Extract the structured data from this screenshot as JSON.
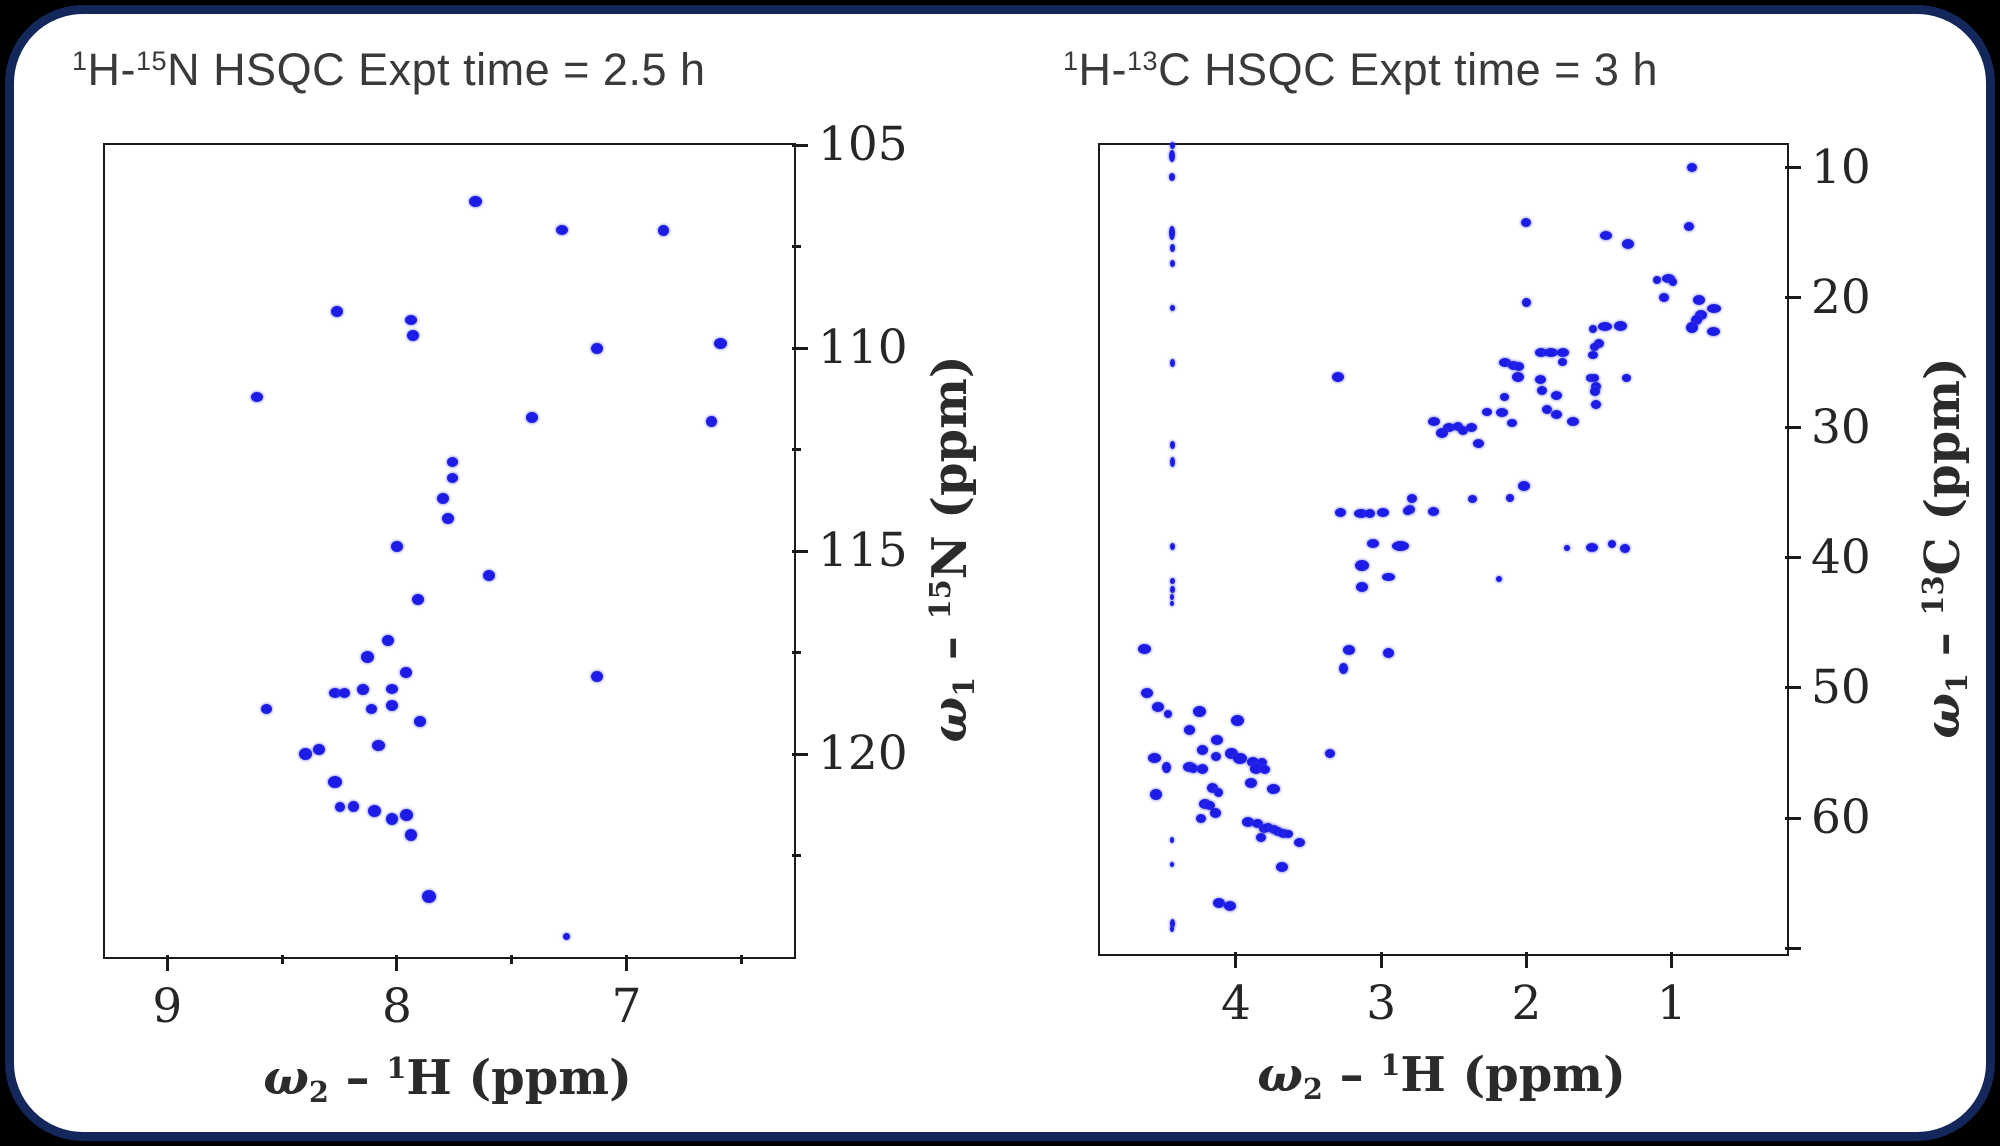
{
  "figure": {
    "background": "#000000",
    "card_border_color": "#14275a",
    "card_background": "#ffffff",
    "peak_color": "#1c1ce6",
    "axis_color": "#1a1a1a",
    "title_color": "#3a3a3a",
    "left_title_plain": "1H-15N HSQC Expt time = 2.5 h",
    "right_title_plain": "1H-13C HSQC Expt time = 3 h"
  },
  "chart_data": [
    {
      "type": "scatter",
      "id": "hsqc-1h15n",
      "title_plain": "1H-15N HSQC Expt time = 2.5 h",
      "title_segments": [
        [
          "sup",
          "1"
        ],
        [
          "t",
          "H-"
        ],
        [
          "sup",
          "15"
        ],
        [
          "t",
          "N HSQC Expt time = 2.5 h"
        ]
      ],
      "xlabel_plain": "w2 - 1H (ppm)",
      "xlabel_segments": [
        [
          "i",
          "ω"
        ],
        [
          "sub",
          "2"
        ],
        [
          "t",
          " – "
        ],
        [
          "sup",
          "1"
        ],
        [
          "t",
          "H (ppm)"
        ]
      ],
      "ylabel_plain": "w1 - 15N (ppm)",
      "ylabel_segments": [
        [
          "i",
          "ω"
        ],
        [
          "sub",
          "1"
        ],
        [
          "t",
          " – "
        ],
        [
          "sup",
          "15"
        ],
        [
          "t",
          "N (ppm)"
        ]
      ],
      "x_axis_reversed": true,
      "y_axis_reversed": true,
      "y_labels_side": "right",
      "grid": false,
      "x_range": [
        9.28,
        6.28
      ],
      "y_range": [
        104.95,
        124.95
      ],
      "x_ticks": [
        9,
        8,
        7
      ],
      "x_minor_ticks": [
        8.5,
        7.5,
        6.5
      ],
      "y_ticks": [
        105,
        110,
        115,
        120
      ],
      "y_minor_ticks": [
        107.5,
        112.5,
        117.5,
        122.5
      ],
      "points_note": "each point = [1H ppm, 15N ppm, width px, height px]",
      "points": [
        [
          7.66,
          106.4,
          13,
          11
        ],
        [
          7.28,
          107.1,
          12,
          10
        ],
        [
          6.84,
          107.1,
          11,
          11
        ],
        [
          8.26,
          109.1,
          12,
          11
        ],
        [
          7.94,
          109.3,
          12,
          10
        ],
        [
          7.93,
          109.7,
          12,
          11
        ],
        [
          7.13,
          110.0,
          12,
          11
        ],
        [
          6.59,
          109.9,
          13,
          11
        ],
        [
          8.61,
          111.2,
          12,
          10
        ],
        [
          7.41,
          111.7,
          12,
          11
        ],
        [
          6.63,
          111.8,
          11,
          11
        ],
        [
          7.76,
          112.8,
          11,
          10
        ],
        [
          7.76,
          113.2,
          11,
          10
        ],
        [
          7.8,
          113.7,
          12,
          11
        ],
        [
          7.78,
          114.2,
          12,
          11
        ],
        [
          8.0,
          114.9,
          12,
          11
        ],
        [
          7.6,
          115.6,
          12,
          11
        ],
        [
          7.91,
          116.2,
          12,
          11
        ],
        [
          8.04,
          117.2,
          12,
          11
        ],
        [
          8.13,
          117.6,
          13,
          12
        ],
        [
          7.96,
          118.0,
          12,
          11
        ],
        [
          7.13,
          118.1,
          12,
          11
        ],
        [
          8.27,
          118.5,
          12,
          10
        ],
        [
          8.23,
          118.5,
          11,
          10
        ],
        [
          8.15,
          118.4,
          12,
          11
        ],
        [
          8.02,
          118.4,
          12,
          10
        ],
        [
          8.11,
          118.9,
          11,
          10
        ],
        [
          8.02,
          118.8,
          12,
          11
        ],
        [
          8.57,
          118.9,
          11,
          10
        ],
        [
          7.9,
          119.2,
          12,
          11
        ],
        [
          8.08,
          119.8,
          13,
          11
        ],
        [
          8.34,
          119.9,
          12,
          11
        ],
        [
          8.4,
          120.0,
          13,
          12
        ],
        [
          8.27,
          120.7,
          14,
          12
        ],
        [
          8.25,
          121.3,
          10,
          10
        ],
        [
          8.19,
          121.3,
          11,
          11
        ],
        [
          8.1,
          121.4,
          13,
          12
        ],
        [
          8.02,
          121.6,
          12,
          12
        ],
        [
          7.96,
          121.5,
          13,
          12
        ],
        [
          7.94,
          122.0,
          12,
          12
        ],
        [
          7.86,
          123.5,
          14,
          13
        ],
        [
          7.26,
          124.5,
          7,
          7
        ]
      ]
    },
    {
      "type": "scatter",
      "id": "hsqc-1h13c",
      "title_plain": "1H-13C HSQC Expt time = 3 h",
      "title_segments": [
        [
          "sup",
          "1"
        ],
        [
          "t",
          "H-"
        ],
        [
          "sup",
          "13"
        ],
        [
          "t",
          "C HSQC Expt time = 3 h"
        ]
      ],
      "xlabel_plain": "w2 - 1H (ppm)",
      "xlabel_segments": [
        [
          "i",
          "ω"
        ],
        [
          "sub",
          "2"
        ],
        [
          "t",
          " – "
        ],
        [
          "sup",
          "1"
        ],
        [
          "t",
          "H (ppm)"
        ]
      ],
      "ylabel_plain": "w1 - 13C (ppm)",
      "ylabel_segments": [
        [
          "i",
          "ω"
        ],
        [
          "sub",
          "1"
        ],
        [
          "t",
          " – "
        ],
        [
          "sup",
          "13"
        ],
        [
          "t",
          "C (ppm)"
        ]
      ],
      "x_axis_reversed": true,
      "y_axis_reversed": true,
      "y_labels_side": "right",
      "grid": false,
      "x_range": [
        4.95,
        0.22
      ],
      "y_range": [
        8.1,
        70.3
      ],
      "x_ticks": [
        4,
        3,
        2,
        1
      ],
      "x_minor_ticks": [],
      "y_ticks": [
        10,
        20,
        30,
        40,
        50,
        60,
        70
      ],
      "y_tick_labels": [
        "10",
        "20",
        "30",
        "40",
        "50",
        "60",
        ""
      ],
      "y_minor_ticks": [],
      "points_note": "each point = [1H ppm, 13C ppm, width px, height px]",
      "points": [
        [
          0.86,
          10.0,
          10,
          9
        ],
        [
          2.0,
          14.2,
          10,
          9
        ],
        [
          1.45,
          15.2,
          12,
          9
        ],
        [
          1.3,
          15.9,
          12,
          10
        ],
        [
          0.88,
          14.5,
          10,
          9
        ],
        [
          1.1,
          18.6,
          8,
          8
        ],
        [
          1.02,
          18.5,
          13,
          9
        ],
        [
          0.99,
          18.8,
          8,
          8
        ],
        [
          1.05,
          20.0,
          10,
          9
        ],
        [
          0.81,
          20.2,
          12,
          10
        ],
        [
          0.71,
          20.8,
          14,
          9
        ],
        [
          0.8,
          21.3,
          12,
          10
        ],
        [
          0.83,
          21.7,
          11,
          10
        ],
        [
          0.86,
          22.3,
          12,
          11
        ],
        [
          0.71,
          22.6,
          13,
          9
        ],
        [
          2.0,
          20.4,
          9,
          9
        ],
        [
          1.54,
          22.4,
          8,
          8
        ],
        [
          1.46,
          22.2,
          14,
          9
        ],
        [
          1.35,
          22.2,
          13,
          10
        ],
        [
          1.5,
          23.5,
          10,
          9
        ],
        [
          1.53,
          23.8,
          9,
          8
        ],
        [
          1.54,
          24.4,
          10,
          8
        ],
        [
          1.9,
          24.2,
          12,
          9
        ],
        [
          1.83,
          24.2,
          14,
          9
        ],
        [
          1.75,
          24.2,
          12,
          9
        ],
        [
          2.15,
          25.0,
          12,
          9
        ],
        [
          2.09,
          25.2,
          11,
          9
        ],
        [
          2.05,
          25.3,
          10,
          9
        ],
        [
          1.75,
          24.9,
          9,
          8
        ],
        [
          2.06,
          26.1,
          12,
          10
        ],
        [
          1.9,
          26.3,
          11,
          9
        ],
        [
          1.56,
          26.2,
          9,
          8
        ],
        [
          1.53,
          26.2,
          9,
          8
        ],
        [
          1.52,
          26.8,
          10,
          9
        ],
        [
          1.31,
          26.2,
          9,
          8
        ],
        [
          1.89,
          27.1,
          10,
          9
        ],
        [
          1.79,
          27.5,
          11,
          9
        ],
        [
          1.53,
          27.2,
          10,
          9
        ],
        [
          2.15,
          27.6,
          9,
          8
        ],
        [
          1.52,
          28.2,
          10,
          9
        ],
        [
          2.27,
          28.8,
          10,
          8
        ],
        [
          2.17,
          28.8,
          12,
          9
        ],
        [
          1.86,
          28.6,
          10,
          9
        ],
        [
          1.79,
          29.0,
          11,
          9
        ],
        [
          1.68,
          29.5,
          12,
          9
        ],
        [
          2.1,
          29.6,
          10,
          8
        ],
        [
          2.64,
          29.5,
          12,
          9
        ],
        [
          2.53,
          30.0,
          12,
          9
        ],
        [
          2.47,
          29.9,
          10,
          9
        ],
        [
          2.44,
          30.2,
          10,
          9
        ],
        [
          2.38,
          30.0,
          11,
          9
        ],
        [
          2.33,
          31.2,
          11,
          9
        ],
        [
          2.58,
          30.4,
          12,
          10
        ],
        [
          2.02,
          34.5,
          12,
          10
        ],
        [
          3.3,
          26.1,
          12,
          10
        ],
        [
          2.79,
          35.4,
          10,
          9
        ],
        [
          2.37,
          35.5,
          9,
          8
        ],
        [
          2.11,
          35.4,
          8,
          8
        ],
        [
          2.8,
          36.3,
          10,
          9
        ],
        [
          3.28,
          36.5,
          11,
          9
        ],
        [
          3.14,
          36.6,
          14,
          9
        ],
        [
          3.08,
          36.6,
          10,
          9
        ],
        [
          2.99,
          36.5,
          12,
          9
        ],
        [
          2.82,
          36.4,
          9,
          8
        ],
        [
          2.64,
          36.4,
          11,
          9
        ],
        [
          3.06,
          38.9,
          12,
          9
        ],
        [
          2.87,
          39.1,
          17,
          10
        ],
        [
          1.72,
          39.2,
          6,
          6
        ],
        [
          1.55,
          39.2,
          12,
          9
        ],
        [
          1.41,
          38.9,
          8,
          8
        ],
        [
          1.32,
          39.3,
          10,
          9
        ],
        [
          3.13,
          40.6,
          14,
          11
        ],
        [
          2.95,
          41.5,
          13,
          8
        ],
        [
          3.13,
          42.2,
          12,
          10
        ],
        [
          2.19,
          41.6,
          6,
          6
        ],
        [
          3.22,
          47.1,
          12,
          10
        ],
        [
          2.95,
          47.3,
          11,
          10
        ],
        [
          3.26,
          48.5,
          9,
          11
        ],
        [
          4.63,
          47.0,
          13,
          10
        ],
        [
          4.61,
          50.4,
          12,
          10
        ],
        [
          4.54,
          51.5,
          12,
          10
        ],
        [
          4.47,
          52.0,
          8,
          8
        ],
        [
          4.25,
          51.8,
          13,
          11
        ],
        [
          3.99,
          52.5,
          13,
          11
        ],
        [
          4.32,
          53.2,
          11,
          10
        ],
        [
          4.13,
          54.0,
          12,
          10
        ],
        [
          4.23,
          54.8,
          11,
          10
        ],
        [
          4.03,
          55.0,
          13,
          11
        ],
        [
          4.14,
          55.3,
          10,
          9
        ],
        [
          4.56,
          55.4,
          13,
          10
        ],
        [
          4.48,
          56.1,
          9,
          11
        ],
        [
          4.32,
          56.1,
          13,
          10
        ],
        [
          4.29,
          56.2,
          9,
          9
        ],
        [
          4.23,
          56.2,
          11,
          10
        ],
        [
          3.97,
          55.4,
          14,
          11
        ],
        [
          3.88,
          55.7,
          12,
          10
        ],
        [
          3.82,
          55.7,
          10,
          9
        ],
        [
          3.86,
          56.2,
          12,
          10
        ],
        [
          3.8,
          56.3,
          10,
          9
        ],
        [
          3.9,
          57.3,
          12,
          10
        ],
        [
          3.74,
          57.8,
          13,
          10
        ],
        [
          4.55,
          58.2,
          12,
          11
        ],
        [
          4.16,
          57.7,
          11,
          10
        ],
        [
          4.12,
          58.0,
          9,
          9
        ],
        [
          4.21,
          58.9,
          12,
          10
        ],
        [
          4.18,
          59.0,
          10,
          9
        ],
        [
          4.14,
          59.6,
          11,
          10
        ],
        [
          4.24,
          60.0,
          10,
          9
        ],
        [
          3.92,
          60.3,
          12,
          10
        ],
        [
          3.85,
          60.4,
          11,
          9
        ],
        [
          3.81,
          60.8,
          10,
          9
        ],
        [
          3.78,
          60.7,
          10,
          9
        ],
        [
          3.74,
          60.9,
          10,
          9
        ],
        [
          3.71,
          61.0,
          10,
          9
        ],
        [
          3.67,
          61.2,
          11,
          9
        ],
        [
          3.64,
          61.2,
          9,
          8
        ],
        [
          3.83,
          61.5,
          10,
          9
        ],
        [
          3.56,
          61.9,
          11,
          9
        ],
        [
          3.68,
          63.8,
          12,
          10
        ],
        [
          4.12,
          66.5,
          12,
          10
        ],
        [
          4.04,
          66.8,
          12,
          10
        ],
        [
          3.35,
          55.0,
          10,
          9
        ]
      ],
      "water_streak": {
        "x": 4.44,
        "dots_note": "each dot = [13C ppm, width px, height px]",
        "dots": [
          [
            8.3,
            5,
            7
          ],
          [
            9.1,
            6,
            12
          ],
          [
            10.7,
            6,
            8
          ],
          [
            15.0,
            6,
            14
          ],
          [
            16.2,
            5,
            8
          ],
          [
            17.4,
            5,
            7
          ],
          [
            20.8,
            5,
            6
          ],
          [
            25.0,
            5,
            8
          ],
          [
            31.3,
            5,
            8
          ],
          [
            32.6,
            5,
            10
          ],
          [
            39.1,
            5,
            7
          ],
          [
            41.8,
            5,
            6
          ],
          [
            42.4,
            5,
            7
          ],
          [
            43.0,
            4,
            6
          ],
          [
            43.5,
            4,
            5
          ],
          [
            61.7,
            4,
            6
          ],
          [
            63.6,
            4,
            5
          ],
          [
            68.1,
            5,
            9
          ],
          [
            68.5,
            4,
            6
          ]
        ]
      }
    }
  ]
}
